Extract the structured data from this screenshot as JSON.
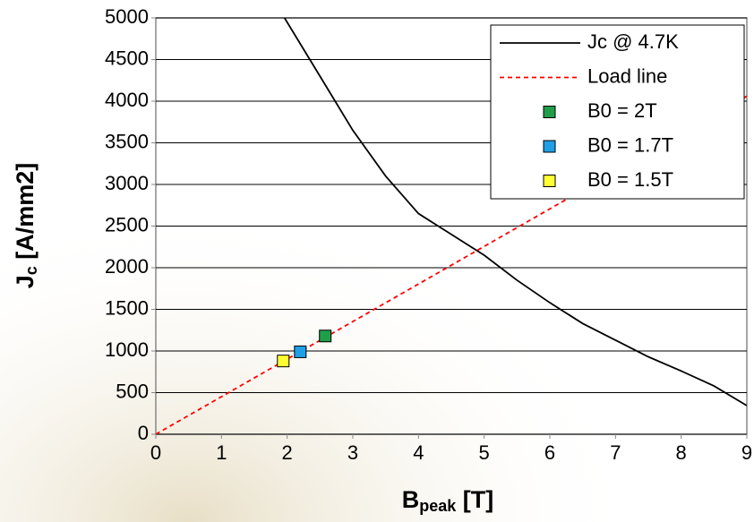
{
  "chart_data": {
    "type": "line",
    "x_label": {
      "main": "B",
      "sub": "peak",
      "rest": " [T]"
    },
    "y_label": {
      "main": "J",
      "sub": "c",
      "rest": " [A/mm2]"
    },
    "xlim": [
      0,
      9
    ],
    "xticks": [
      0,
      1,
      2,
      3,
      4,
      5,
      6,
      7,
      8,
      9
    ],
    "ylim": [
      0,
      5000
    ],
    "yticks": [
      0,
      500,
      1000,
      1500,
      2000,
      2500,
      3000,
      3500,
      4000,
      4500,
      5000
    ],
    "grid": true,
    "legend": "top-right",
    "series": [
      {
        "name": "Jc @ 4.7K",
        "type": "line",
        "color": "#000000",
        "dash": false,
        "x": [
          1.96,
          2.5,
          3,
          3.5,
          4,
          4.5,
          5,
          5.5,
          6,
          6.5,
          7,
          7.5,
          8,
          8.5,
          9
        ],
        "values": [
          5000,
          4300,
          3650,
          3100,
          2650,
          2400,
          2150,
          1850,
          1580,
          1330,
          1130,
          930,
          760,
          580,
          344
        ]
      },
      {
        "name": "Load line",
        "type": "line",
        "color": "#ff0000",
        "dash": true,
        "x": [
          0,
          9
        ],
        "values": [
          0,
          4060
        ]
      },
      {
        "name": "B0 = 2T",
        "type": "scatter",
        "color": "#1f9e4a",
        "x": [
          2.58
        ],
        "values": [
          1180
        ]
      },
      {
        "name": "B0 = 1.7T",
        "type": "scatter",
        "color": "#1fa0e6",
        "x": [
          2.2
        ],
        "values": [
          990
        ]
      },
      {
        "name": "B0 = 1.5T",
        "type": "scatter",
        "color": "#ffff33",
        "x": [
          1.94
        ],
        "values": [
          880
        ]
      }
    ]
  }
}
